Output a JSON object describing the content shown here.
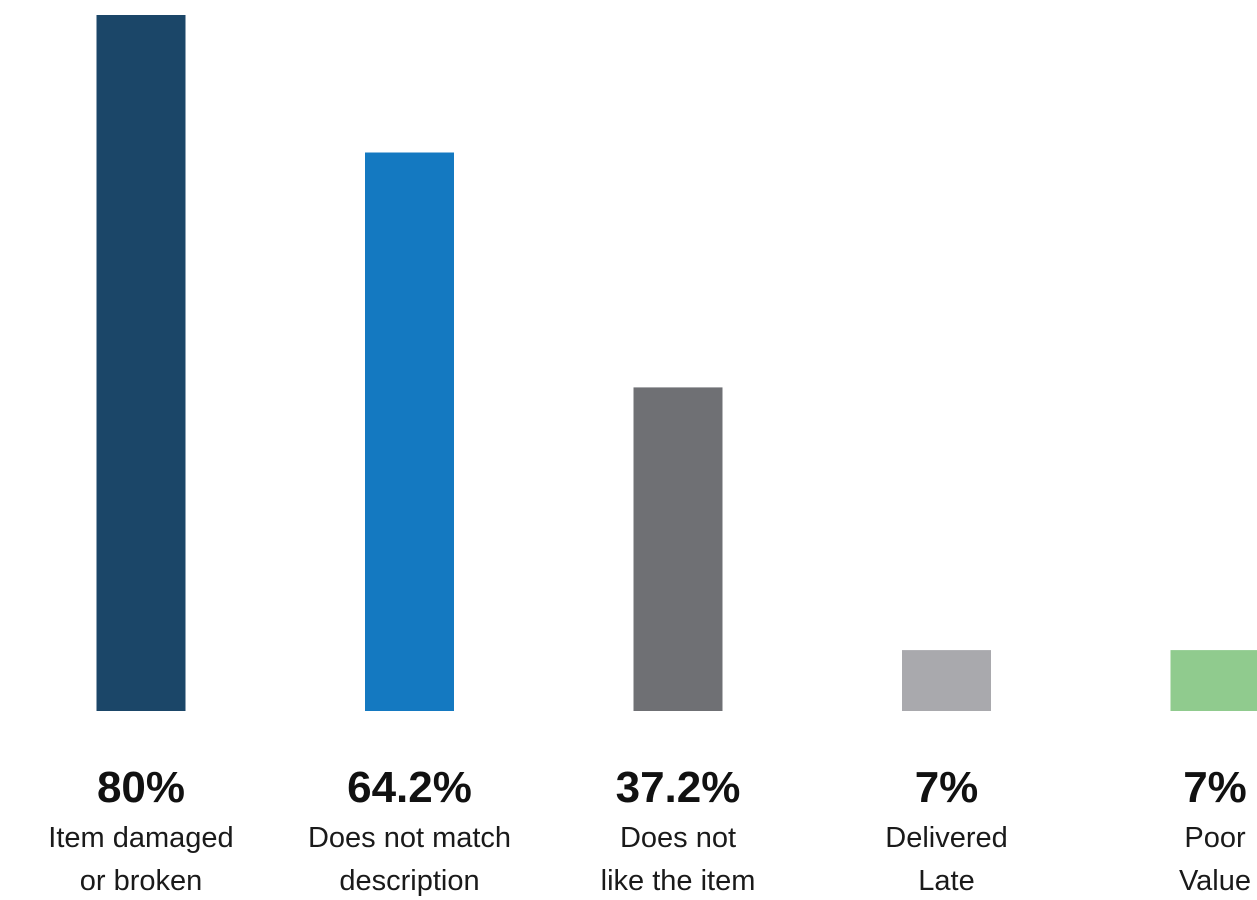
{
  "chart_data": {
    "type": "bar",
    "categories": [
      [
        "Item damaged",
        "or broken"
      ],
      [
        "Does not match",
        "description"
      ],
      [
        "Does not",
        "like the item"
      ],
      [
        "Delivered",
        "Late"
      ],
      [
        "Poor",
        "Value"
      ]
    ],
    "values": [
      80,
      64.2,
      37.2,
      7,
      7
    ],
    "value_labels": [
      "80%",
      "64.2%",
      "37.2%",
      "7%",
      "7%"
    ],
    "colors": [
      "#1b4668",
      "#1479c1",
      "#6f7074",
      "#a9a9ad",
      "#90cb8e"
    ],
    "ylim": [
      0,
      80
    ],
    "grid": false,
    "legend": "none"
  }
}
